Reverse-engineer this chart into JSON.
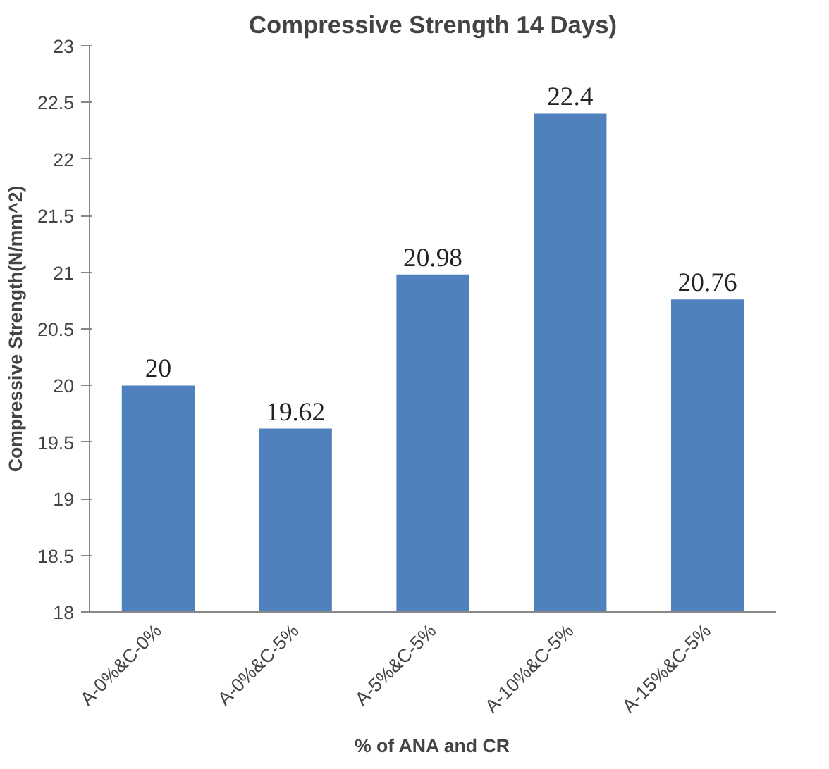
{
  "chart_data": {
    "type": "bar",
    "title": "Compressive Strength 14 Days)",
    "xlabel": "% of ANA and CR",
    "ylabel": "Compressive Strength(N/mm^2)",
    "categories": [
      "A-0%&C-0%",
      "A-0%&C-5%",
      "A-5%&C-5%",
      "A-10%&C-5%",
      "A-15%&C-5%"
    ],
    "values": [
      20,
      19.62,
      20.98,
      22.4,
      20.76
    ],
    "color": "#4f81bd",
    "ylim": [
      18,
      23
    ],
    "yticks": [
      18,
      18.5,
      19,
      19.5,
      20,
      20.5,
      21,
      21.5,
      22,
      22.5,
      23
    ],
    "grid": false,
    "data_labels": true
  }
}
